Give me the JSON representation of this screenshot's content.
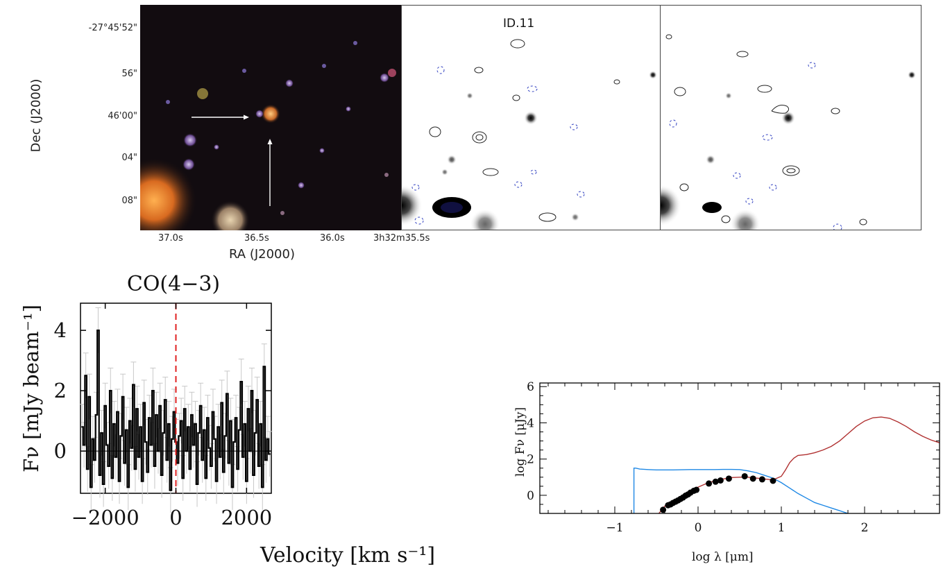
{
  "figure": {
    "top": {
      "ylabel": "Dec (J2000)",
      "xlabel": "RA (J2000)",
      "yticks": [
        "-27°45'52\"",
        "56\"",
        "46'00\"",
        "04\"",
        "08\""
      ],
      "xticks": [
        "37.0s",
        "36.5s",
        "36.0s",
        "3h32m35.5s"
      ],
      "panel_label": "ID.11"
    }
  },
  "chart_data": [
    {
      "type": "line",
      "title": "CO(4−3)",
      "xlabel": "Velocity [km s⁻¹]",
      "ylabel": "Fν [mJy beam⁻¹]",
      "xlim": [
        -2700,
        2700
      ],
      "ylim": [
        -1.4,
        4.9
      ],
      "xticks": [
        "−2000",
        "0",
        "2000"
      ],
      "yticks": [
        "0",
        "2",
        "4"
      ],
      "marker_line": {
        "x": 0,
        "color": "#e02020",
        "style": "dashed"
      },
      "series": [
        {
          "x": [
            -2650,
            -2600,
            -2550,
            -2500,
            -2450,
            -2400,
            -2350,
            -2300,
            -2250,
            -2200,
            -2150,
            -2100,
            -2050,
            -2000,
            -1950,
            -1900,
            -1850,
            -1800,
            -1750,
            -1700,
            -1650,
            -1600,
            -1550,
            -1500,
            -1450,
            -1400,
            -1350,
            -1300,
            -1250,
            -1200,
            -1150,
            -1100,
            -1050,
            -1000,
            -950,
            -900,
            -850,
            -800,
            -750,
            -700,
            -650,
            -600,
            -550,
            -500,
            -450,
            -400,
            -350,
            -300,
            -250,
            -200,
            -150,
            -100,
            -50,
            0,
            50,
            100,
            150,
            200,
            250,
            300,
            350,
            400,
            450,
            500,
            550,
            600,
            650,
            700,
            750,
            800,
            850,
            900,
            950,
            1000,
            1050,
            1100,
            1150,
            1200,
            1250,
            1300,
            1350,
            1400,
            1450,
            1500,
            1550,
            1600,
            1650,
            1700,
            1750,
            1800,
            1850,
            1900,
            1950,
            2000,
            2050,
            2100,
            2150,
            2200,
            2250,
            2300,
            2350,
            2400,
            2450,
            2500,
            2550,
            2600,
            2650
          ],
          "values": [
            0.8,
            0.2,
            2.5,
            -0.6,
            1.8,
            -1.2,
            0.4,
            -0.3,
            1.2,
            4.0,
            -0.8,
            0.6,
            -1.1,
            1.5,
            0.2,
            -0.5,
            2.0,
            -0.9,
            0.9,
            -0.2,
            1.3,
            -1.0,
            0.5,
            1.8,
            -0.4,
            0.7,
            -1.2,
            1.0,
            0.1,
            2.2,
            -0.6,
            1.4,
            -0.2,
            0.8,
            -1.0,
            1.6,
            0.3,
            -0.7,
            1.1,
            0.2,
            2.0,
            -0.5,
            1.2,
            0.0,
            1.5,
            -0.8,
            0.6,
            1.7,
            -0.3,
            0.9,
            -1.3,
            0.4,
            1.3,
            0.3,
            -0.4,
            0.5,
            1.0,
            -0.9,
            1.4,
            0.0,
            0.8,
            -0.6,
            1.2,
            0.2,
            0.9,
            -1.1,
            0.6,
            1.5,
            -0.3,
            0.7,
            -0.9,
            1.1,
            0.1,
            -0.5,
            1.3,
            0.4,
            -1.0,
            0.8,
            -0.2,
            1.6,
            -0.7,
            0.5,
            1.9,
            -0.4,
            1.0,
            -1.2,
            0.3,
            1.1,
            -0.6,
            0.7,
            2.3,
            -0.2,
            0.9,
            -1.0,
            1.4,
            0.0,
            2.0,
            -0.8,
            0.6,
            1.7,
            -0.5,
            0.9,
            -1.2,
            2.8,
            -0.3,
            0.4,
            -0.1
          ],
          "color": "#000000"
        }
      ]
    },
    {
      "type": "line",
      "title": "",
      "xlabel": "log λ [μm]",
      "ylabel": "log Fν [μJy]",
      "xlim": [
        -1.9,
        2.9
      ],
      "ylim": [
        -1.0,
        6.2
      ],
      "xticks": [
        "−1",
        "0",
        "1",
        "2"
      ],
      "yticks": [
        "0",
        "2",
        "4",
        "6"
      ],
      "series": [
        {
          "name": "",
          "color": "#1e88e5",
          "x": [
            -0.77,
            -0.77,
            -0.75,
            -0.7,
            -0.6,
            -0.5,
            -0.4,
            -0.3,
            -0.2,
            -0.1,
            0.0,
            0.1,
            0.2,
            0.3,
            0.4,
            0.5,
            0.6,
            0.7,
            0.8,
            0.9,
            1.0,
            1.1,
            1.2,
            1.3,
            1.4,
            1.5,
            1.6,
            1.7,
            1.8
          ],
          "values": [
            -1.0,
            1.5,
            1.5,
            1.45,
            1.42,
            1.4,
            1.4,
            1.4,
            1.41,
            1.42,
            1.42,
            1.42,
            1.42,
            1.43,
            1.43,
            1.42,
            1.35,
            1.25,
            1.1,
            0.95,
            0.7,
            0.4,
            0.1,
            -0.15,
            -0.4,
            -0.55,
            -0.7,
            -0.85,
            -1.0
          ]
        },
        {
          "name": "",
          "color": "#b03030",
          "x": [
            -0.47,
            -0.4,
            -0.3,
            -0.2,
            -0.1,
            0.0,
            0.1,
            0.2,
            0.3,
            0.4,
            0.5,
            0.6,
            0.7,
            0.8,
            0.9,
            1.0,
            1.05,
            1.1,
            1.15,
            1.2,
            1.3,
            1.4,
            1.5,
            1.6,
            1.7,
            1.8,
            1.9,
            2.0,
            2.1,
            2.2,
            2.3,
            2.4,
            2.5,
            2.6,
            2.7,
            2.8,
            2.9
          ],
          "values": [
            -1.0,
            -0.6,
            -0.3,
            -0.05,
            0.2,
            0.45,
            0.65,
            0.8,
            0.9,
            0.98,
            1.0,
            1.0,
            0.95,
            0.9,
            0.85,
            1.05,
            1.4,
            1.8,
            2.05,
            2.2,
            2.25,
            2.35,
            2.5,
            2.7,
            3.0,
            3.4,
            3.8,
            4.1,
            4.28,
            4.32,
            4.25,
            4.05,
            3.8,
            3.5,
            3.25,
            3.05,
            2.9
          ]
        }
      ],
      "points": {
        "x": [
          -0.42,
          -0.36,
          -0.33,
          -0.3,
          -0.27,
          -0.24,
          -0.21,
          -0.18,
          -0.15,
          -0.12,
          -0.09,
          -0.05,
          -0.02,
          0.13,
          0.21,
          0.27,
          0.37,
          0.56,
          0.66,
          0.77,
          0.9
        ],
        "y": [
          -0.8,
          -0.55,
          -0.5,
          -0.42,
          -0.35,
          -0.28,
          -0.2,
          -0.12,
          -0.02,
          0.05,
          0.15,
          0.25,
          0.3,
          0.65,
          0.75,
          0.82,
          0.92,
          1.05,
          0.92,
          0.88,
          0.8
        ],
        "color": "#000000"
      }
    }
  ]
}
